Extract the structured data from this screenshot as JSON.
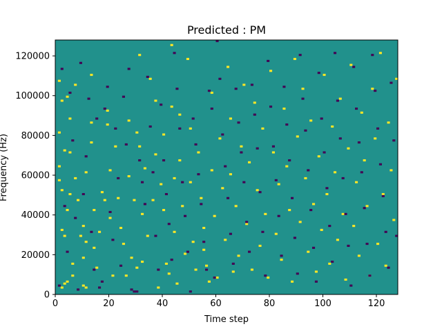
{
  "chart_data": {
    "type": "heatmap",
    "title": "Predicted : PM",
    "xlabel": "Time step",
    "ylabel": "Frequency (Hz)",
    "xlim": [
      0,
      128
    ],
    "ylim": [
      0,
      128000
    ],
    "xticks": [
      0,
      20,
      40,
      60,
      80,
      100,
      120
    ],
    "yticks": [
      0,
      20000,
      40000,
      60000,
      80000,
      100000,
      120000
    ],
    "ytick_labels": [
      "0",
      "20000",
      "40000",
      "60000",
      "80000",
      "100000",
      "120000"
    ],
    "n_time_steps": 128,
    "n_freq_bins": 128,
    "bin_hz": 1000,
    "colormap": "viridis",
    "background_value": 0,
    "value_colors": {
      "-1": "#440154",
      "0": "#21918c",
      "1": "#fde725"
    },
    "cells": [
      [
        1,
        107,
        1
      ],
      [
        1,
        81,
        1
      ],
      [
        1,
        64,
        1
      ],
      [
        1,
        57,
        1
      ],
      [
        2,
        97,
        1
      ],
      [
        2,
        52,
        1
      ],
      [
        2,
        32,
        1
      ],
      [
        2,
        3,
        1
      ],
      [
        3,
        72,
        1
      ],
      [
        3,
        29,
        1
      ],
      [
        3,
        5,
        1
      ],
      [
        4,
        99,
        1
      ],
      [
        4,
        42,
        1
      ],
      [
        4,
        6,
        1
      ],
      [
        5,
        88,
        1
      ],
      [
        5,
        71,
        1
      ],
      [
        5,
        50,
        1
      ],
      [
        6,
        15,
        1
      ],
      [
        6,
        9,
        1
      ],
      [
        7,
        105,
        1
      ],
      [
        7,
        58,
        1
      ],
      [
        8,
        47,
        1
      ],
      [
        9,
        29,
        1
      ],
      [
        10,
        34,
        1
      ],
      [
        10,
        18,
        1
      ],
      [
        10,
        4,
        1
      ],
      [
        11,
        61,
        1
      ],
      [
        11,
        26,
        1
      ],
      [
        11,
        3,
        1
      ],
      [
        13,
        110,
        1
      ],
      [
        13,
        86,
        1
      ],
      [
        13,
        76,
        1
      ],
      [
        14,
        42,
        1
      ],
      [
        14,
        23,
        1
      ],
      [
        15,
        13,
        1
      ],
      [
        16,
        31,
        1
      ],
      [
        17,
        51,
        1
      ],
      [
        18,
        47,
        1
      ],
      [
        19,
        92,
        1
      ],
      [
        19,
        85,
        1
      ],
      [
        20,
        62,
        1
      ],
      [
        20,
        38,
        1
      ],
      [
        21,
        9,
        1
      ],
      [
        22,
        74,
        1
      ],
      [
        23,
        48,
        1
      ],
      [
        24,
        33,
        1
      ],
      [
        25,
        25,
        1
      ],
      [
        26,
        9,
        1
      ],
      [
        27,
        87,
        1
      ],
      [
        27,
        59,
        1
      ],
      [
        28,
        18,
        1
      ],
      [
        29,
        47,
        1
      ],
      [
        30,
        81,
        1
      ],
      [
        30,
        13,
        1
      ],
      [
        31,
        120,
        1
      ],
      [
        31,
        74,
        1
      ],
      [
        32,
        40,
        1
      ],
      [
        32,
        16,
        1
      ],
      [
        33,
        63,
        1
      ],
      [
        34,
        29,
        1
      ],
      [
        35,
        108,
        1
      ],
      [
        36,
        47,
        1
      ],
      [
        37,
        97,
        1
      ],
      [
        37,
        70,
        1
      ],
      [
        38,
        3,
        1
      ],
      [
        39,
        55,
        1
      ],
      [
        40,
        80,
        1
      ],
      [
        40,
        42,
        1
      ],
      [
        41,
        15,
        1
      ],
      [
        42,
        10,
        1
      ],
      [
        43,
        125,
        1
      ],
      [
        43,
        94,
        1
      ],
      [
        44,
        58,
        1
      ],
      [
        44,
        31,
        1
      ],
      [
        45,
        5,
        1
      ],
      [
        46,
        90,
        1
      ],
      [
        46,
        67,
        1
      ],
      [
        47,
        44,
        1
      ],
      [
        48,
        20,
        1
      ],
      [
        49,
        118,
        1
      ],
      [
        50,
        83,
        1
      ],
      [
        50,
        56,
        1
      ],
      [
        51,
        26,
        1
      ],
      [
        52,
        12,
        1
      ],
      [
        53,
        71,
        1
      ],
      [
        54,
        48,
        1
      ],
      [
        55,
        33,
        1
      ],
      [
        55,
        22,
        1
      ],
      [
        56,
        14,
        1
      ],
      [
        57,
        6,
        1
      ],
      [
        58,
        101,
        1
      ],
      [
        58,
        62,
        1
      ],
      [
        59,
        39,
        1
      ],
      [
        60,
        8,
        1
      ],
      [
        61,
        78,
        1
      ],
      [
        62,
        53,
        1
      ],
      [
        63,
        27,
        1
      ],
      [
        64,
        114,
        1
      ],
      [
        65,
        88,
        1
      ],
      [
        65,
        60,
        1
      ],
      [
        66,
        11,
        1
      ],
      [
        67,
        44,
        1
      ],
      [
        68,
        19,
        1
      ],
      [
        69,
        74,
        1
      ],
      [
        70,
        105,
        1
      ],
      [
        71,
        35,
        1
      ],
      [
        72,
        66,
        1
      ],
      [
        73,
        12,
        1
      ],
      [
        74,
        96,
        1
      ],
      [
        75,
        52,
        1
      ],
      [
        76,
        24,
        1
      ],
      [
        77,
        83,
        1
      ],
      [
        78,
        40,
        1
      ],
      [
        79,
        8,
        1
      ],
      [
        80,
        112,
        1
      ],
      [
        81,
        71,
        1
      ],
      [
        82,
        30,
        1
      ],
      [
        83,
        55,
        1
      ],
      [
        84,
        17,
        1
      ],
      [
        85,
        93,
        1
      ],
      [
        86,
        64,
        1
      ],
      [
        87,
        42,
        1
      ],
      [
        88,
        6,
        1
      ],
      [
        89,
        118,
        1
      ],
      [
        90,
        79,
        1
      ],
      [
        91,
        36,
        1
      ],
      [
        92,
        103,
        1
      ],
      [
        93,
        58,
        1
      ],
      [
        94,
        21,
        1
      ],
      [
        95,
        87,
        1
      ],
      [
        96,
        45,
        1
      ],
      [
        97,
        11,
        1
      ],
      [
        98,
        69,
        1
      ],
      [
        99,
        32,
        1
      ],
      [
        100,
        110,
        1
      ],
      [
        101,
        50,
        1
      ],
      [
        102,
        15,
        1
      ],
      [
        103,
        84,
        1
      ],
      [
        104,
        61,
        1
      ],
      [
        105,
        27,
        1
      ],
      [
        106,
        98,
        1
      ],
      [
        107,
        40,
        1
      ],
      [
        108,
        7,
        1
      ],
      [
        109,
        73,
        1
      ],
      [
        110,
        115,
        1
      ],
      [
        111,
        34,
        1
      ],
      [
        112,
        56,
        1
      ],
      [
        113,
        19,
        1
      ],
      [
        114,
        91,
        1
      ],
      [
        115,
        67,
        1
      ],
      [
        116,
        44,
        1
      ],
      [
        117,
        9,
        1
      ],
      [
        118,
        103,
        1
      ],
      [
        119,
        78,
        1
      ],
      [
        120,
        25,
        1
      ],
      [
        121,
        121,
        1
      ],
      [
        122,
        50,
        1
      ],
      [
        123,
        14,
        1
      ],
      [
        124,
        86,
        1
      ],
      [
        125,
        62,
        1
      ],
      [
        126,
        37,
        1
      ],
      [
        127,
        108,
        1
      ],
      [
        1,
        4,
        -1
      ],
      [
        2,
        113,
        -1
      ],
      [
        3,
        44,
        -1
      ],
      [
        4,
        21,
        -1
      ],
      [
        5,
        101,
        -1
      ],
      [
        6,
        77,
        -1
      ],
      [
        7,
        38,
        -1
      ],
      [
        8,
        2,
        -1
      ],
      [
        9,
        116,
        -1
      ],
      [
        10,
        50,
        -1
      ],
      [
        11,
        69,
        -1
      ],
      [
        12,
        98,
        -1
      ],
      [
        13,
        31,
        -1
      ],
      [
        14,
        12,
        -1
      ],
      [
        15,
        88,
        -1
      ],
      [
        16,
        3,
        -1
      ],
      [
        17,
        6,
        -1
      ],
      [
        18,
        93,
        -1
      ],
      [
        19,
        104,
        -1
      ],
      [
        20,
        41,
        -1
      ],
      [
        21,
        27,
        -1
      ],
      [
        22,
        83,
        -1
      ],
      [
        23,
        58,
        -1
      ],
      [
        24,
        14,
        -1
      ],
      [
        25,
        99,
        -1
      ],
      [
        26,
        75,
        -1
      ],
      [
        27,
        113,
        -1
      ],
      [
        28,
        2,
        -1
      ],
      [
        29,
        1,
        -1
      ],
      [
        30,
        1,
        -1
      ],
      [
        31,
        67,
        -1
      ],
      [
        32,
        56,
        -1
      ],
      [
        33,
        45,
        -1
      ],
      [
        34,
        109,
        -1
      ],
      [
        35,
        84,
        -1
      ],
      [
        36,
        61,
        -1
      ],
      [
        37,
        29,
        -1
      ],
      [
        38,
        12,
        -1
      ],
      [
        39,
        95,
        -1
      ],
      [
        40,
        67,
        -1
      ],
      [
        41,
        50,
        -1
      ],
      [
        42,
        35,
        -1
      ],
      [
        43,
        17,
        -1
      ],
      [
        44,
        121,
        -1
      ],
      [
        45,
        103,
        -1
      ],
      [
        46,
        83,
        -1
      ],
      [
        47,
        56,
        -1
      ],
      [
        48,
        39,
        -1
      ],
      [
        49,
        21,
        -1
      ],
      [
        50,
        1,
        -1
      ],
      [
        51,
        88,
        -1
      ],
      [
        52,
        75,
        -1
      ],
      [
        53,
        60,
        -1
      ],
      [
        54,
        45,
        -1
      ],
      [
        55,
        26,
        -1
      ],
      [
        56,
        12,
        -1
      ],
      [
        57,
        102,
        -1
      ],
      [
        58,
        93,
        -1
      ],
      [
        59,
        8,
        -1
      ],
      [
        60,
        127,
        -1
      ],
      [
        61,
        108,
        -1
      ],
      [
        62,
        80,
        -1
      ],
      [
        63,
        64,
        -1
      ],
      [
        64,
        48,
        -1
      ],
      [
        65,
        30,
        -1
      ],
      [
        66,
        15,
        -1
      ],
      [
        67,
        103,
        -1
      ],
      [
        68,
        86,
        -1
      ],
      [
        69,
        71,
        -1
      ],
      [
        70,
        56,
        -1
      ],
      [
        71,
        36,
        -1
      ],
      [
        72,
        21,
        -1
      ],
      [
        73,
        105,
        -1
      ],
      [
        74,
        90,
        -1
      ],
      [
        75,
        73,
        -1
      ],
      [
        76,
        51,
        -1
      ],
      [
        77,
        31,
        -1
      ],
      [
        78,
        9,
        -1
      ],
      [
        79,
        117,
        -1
      ],
      [
        80,
        94,
        -1
      ],
      [
        81,
        74,
        -1
      ],
      [
        82,
        57,
        -1
      ],
      [
        83,
        39,
        -1
      ],
      [
        84,
        19,
        -1
      ],
      [
        85,
        104,
        -1
      ],
      [
        86,
        85,
        -1
      ],
      [
        87,
        67,
        -1
      ],
      [
        88,
        48,
        -1
      ],
      [
        89,
        28,
        -1
      ],
      [
        90,
        10,
        -1
      ],
      [
        91,
        120,
        -1
      ],
      [
        92,
        98,
        -1
      ],
      [
        93,
        82,
        -1
      ],
      [
        94,
        62,
        -1
      ],
      [
        95,
        42,
        -1
      ],
      [
        96,
        23,
        -1
      ],
      [
        97,
        6,
        -1
      ],
      [
        98,
        111,
        -1
      ],
      [
        99,
        88,
        -1
      ],
      [
        100,
        71,
        -1
      ],
      [
        101,
        53,
        -1
      ],
      [
        102,
        34,
        -1
      ],
      [
        103,
        16,
        -1
      ],
      [
        104,
        121,
        -1
      ],
      [
        105,
        97,
        -1
      ],
      [
        106,
        78,
        -1
      ],
      [
        107,
        58,
        -1
      ],
      [
        108,
        40,
        -1
      ],
      [
        109,
        24,
        -1
      ],
      [
        110,
        4,
        -1
      ],
      [
        111,
        114,
        -1
      ],
      [
        112,
        93,
        -1
      ],
      [
        113,
        76,
        -1
      ],
      [
        114,
        61,
        -1
      ],
      [
        115,
        43,
        -1
      ],
      [
        116,
        25,
        -1
      ],
      [
        117,
        9,
        -1
      ],
      [
        118,
        120,
        -1
      ],
      [
        119,
        102,
        -1
      ],
      [
        120,
        83,
        -1
      ],
      [
        121,
        65,
        -1
      ],
      [
        122,
        49,
        -1
      ],
      [
        123,
        31,
        -1
      ],
      [
        124,
        13,
        -1
      ],
      [
        125,
        106,
        -1
      ],
      [
        126,
        77,
        -1
      ],
      [
        127,
        29,
        -1
      ]
    ]
  }
}
